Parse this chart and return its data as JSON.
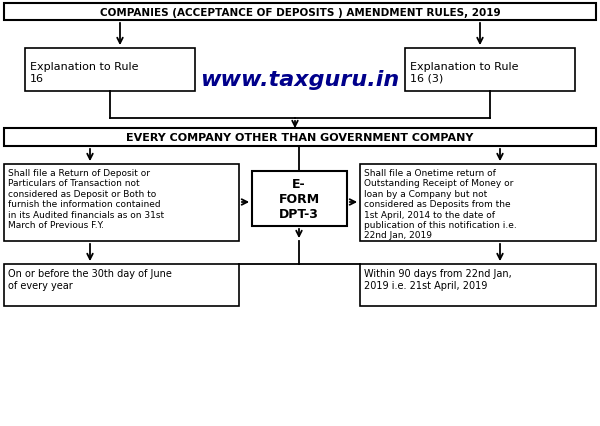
{
  "title": "COMPANIES (ACCEPTANCE OF DEPOSITS ) AMENDMENT RULES, 2019",
  "watermark": "www.taxguru.in",
  "middle_box": "EVERY COMPANY OTHER THAN GOVERNMENT COMPANY",
  "center_form": "E-\nFORM\nDPT-3",
  "box1_title": "Explanation to Rule\n16",
  "box2_title": "Explanation to Rule\n16 (3)",
  "box3_text": "Shall file a Return of Deposit or\nParticulars of Transaction not\nconsidered as Deposit or Both to\nfurnish the information contained\nin its Audited financials as on 31st\nMarch of Previous F.Y.",
  "box4_text": "Shall file a Onetime return of\nOutstanding Receipt of Money or\nloan by a Company but not\nconsidered as Deposits from the\n1st April, 2014 to the date of\npublication of this notification i.e.\n22nd Jan, 2019",
  "box5_text": "On or before the 30th day of June\nof every year",
  "box6_text": "Within 90 days from 22nd Jan,\n2019 i.e. 21st April, 2019",
  "bg_color": "#ffffff",
  "box_facecolor": "#ffffff",
  "box_edgecolor": "#000000",
  "arrow_color": "#000000",
  "watermark_color": "#00008B",
  "text_color": "#000000"
}
